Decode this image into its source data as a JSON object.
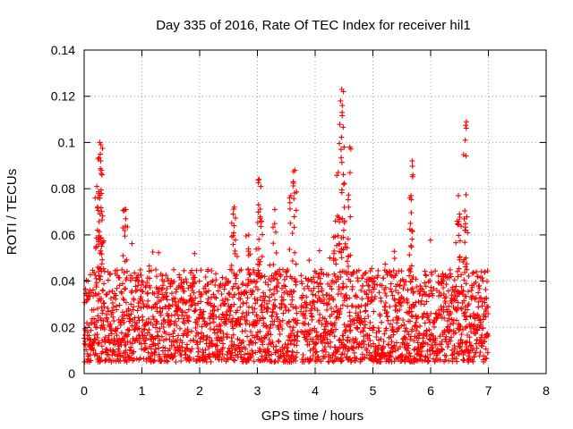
{
  "chart_data": {
    "type": "scatter",
    "title": "Day 335 of 2016, Rate Of TEC Index for receiver hil1",
    "xlabel": "GPS time / hours",
    "ylabel": "ROTI / TECUs",
    "xlim": [
      0,
      8
    ],
    "ylim": [
      0,
      0.14
    ],
    "xticks": [
      0,
      1,
      2,
      3,
      4,
      5,
      6,
      7,
      8
    ],
    "xtick_labels": [
      "0",
      "1",
      "2",
      "3",
      "4",
      "5",
      "6",
      "7",
      "8"
    ],
    "yticks": [
      0,
      0.02,
      0.04,
      0.06,
      0.08,
      0.1,
      0.12,
      0.14
    ],
    "ytick_labels": [
      "0",
      "0.02",
      "0.04",
      "0.06",
      "0.08",
      "0.1",
      "0.12",
      "0.14"
    ],
    "grid": true,
    "marker": "+",
    "color": "#ff0000",
    "series": [
      {
        "name": "ROTI",
        "data_range_x": [
          0,
          7.0
        ],
        "gap_x": [
          3.7,
          3.75
        ],
        "typical_y_range": [
          0.005,
          0.045
        ],
        "peaks": [
          {
            "x": 0.27,
            "y": 0.1
          },
          {
            "x": 0.29,
            "y": 0.099
          },
          {
            "x": 0.28,
            "y": 0.095
          },
          {
            "x": 0.3,
            "y": 0.088
          },
          {
            "x": 0.31,
            "y": 0.086
          },
          {
            "x": 0.22,
            "y": 0.081
          },
          {
            "x": 0.25,
            "y": 0.078
          },
          {
            "x": 0.23,
            "y": 0.072
          },
          {
            "x": 0.7,
            "y": 0.071
          },
          {
            "x": 0.72,
            "y": 0.067
          },
          {
            "x": 2.6,
            "y": 0.072
          },
          {
            "x": 2.58,
            "y": 0.069
          },
          {
            "x": 2.85,
            "y": 0.06
          },
          {
            "x": 3.03,
            "y": 0.084
          },
          {
            "x": 3.06,
            "y": 0.081
          },
          {
            "x": 3.02,
            "y": 0.073
          },
          {
            "x": 3.3,
            "y": 0.071
          },
          {
            "x": 3.65,
            "y": 0.088
          },
          {
            "x": 3.62,
            "y": 0.083
          },
          {
            "x": 3.58,
            "y": 0.077
          },
          {
            "x": 4.46,
            "y": 0.123
          },
          {
            "x": 4.49,
            "y": 0.122
          },
          {
            "x": 4.44,
            "y": 0.118
          },
          {
            "x": 4.47,
            "y": 0.116
          },
          {
            "x": 4.5,
            "y": 0.098
          },
          {
            "x": 4.6,
            "y": 0.098
          },
          {
            "x": 4.4,
            "y": 0.087
          },
          {
            "x": 4.58,
            "y": 0.072
          },
          {
            "x": 4.35,
            "y": 0.066
          },
          {
            "x": 5.68,
            "y": 0.092
          },
          {
            "x": 5.66,
            "y": 0.077
          },
          {
            "x": 5.65,
            "y": 0.065
          },
          {
            "x": 6.62,
            "y": 0.109
          },
          {
            "x": 6.6,
            "y": 0.101
          },
          {
            "x": 6.48,
            "y": 0.077
          },
          {
            "x": 6.5,
            "y": 0.069
          },
          {
            "x": 6.58,
            "y": 0.067
          }
        ]
      }
    ]
  }
}
